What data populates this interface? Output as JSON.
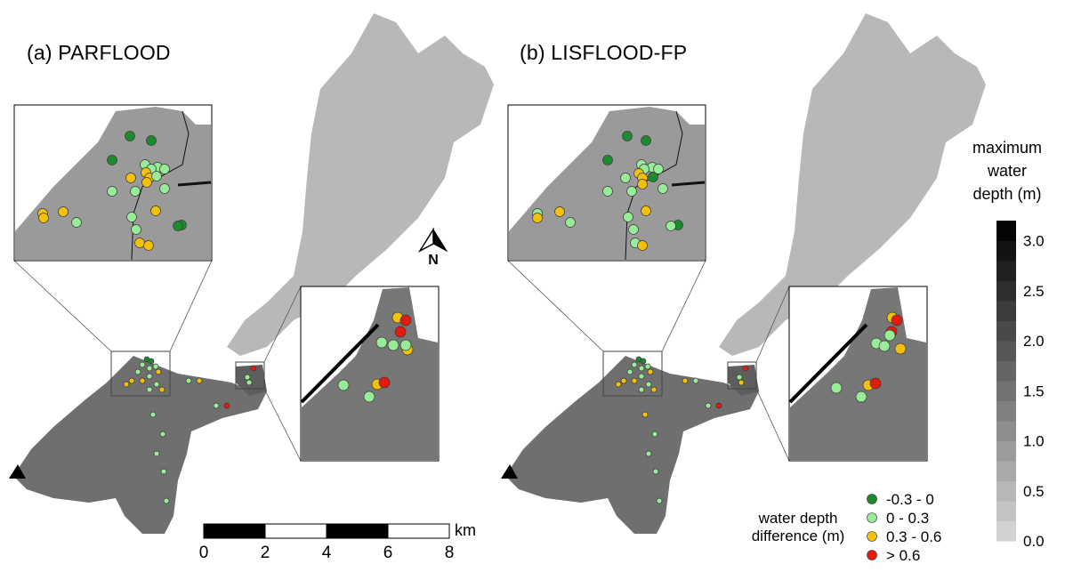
{
  "panels": {
    "a": {
      "title": "(a) PARFLOOD"
    },
    "b": {
      "title": "(b) LISFLOOD-FP"
    }
  },
  "north_arrow": {
    "label": "N",
    "icon": "north-arrow-icon"
  },
  "scale_bar": {
    "unit": "km",
    "ticks": [
      "0",
      "2",
      "4",
      "6",
      "8"
    ]
  },
  "colorbar": {
    "title_lines": [
      "maximum",
      "water",
      "depth (m)"
    ],
    "ticks": [
      "3.0",
      "2.5",
      "2.0",
      "1.5",
      "1.0",
      "0.5",
      "0.0"
    ],
    "range": [
      0.0,
      3.2
    ],
    "color_low": "#d4d4d4",
    "color_high": "#050505"
  },
  "legend": {
    "title_lines": [
      "water depth",
      "difference (m)"
    ],
    "items": [
      {
        "label": "-0.3 - 0",
        "color": "#1e8a2e"
      },
      {
        "label": "0 - 0.3",
        "color": "#98ec98"
      },
      {
        "label": "0.3 - 0.6",
        "color": "#f2c10c"
      },
      {
        "label": "> 0.6",
        "color": "#e41a0e"
      }
    ]
  },
  "markers": {
    "outlet_icon": "outlet-triangle-icon"
  }
}
